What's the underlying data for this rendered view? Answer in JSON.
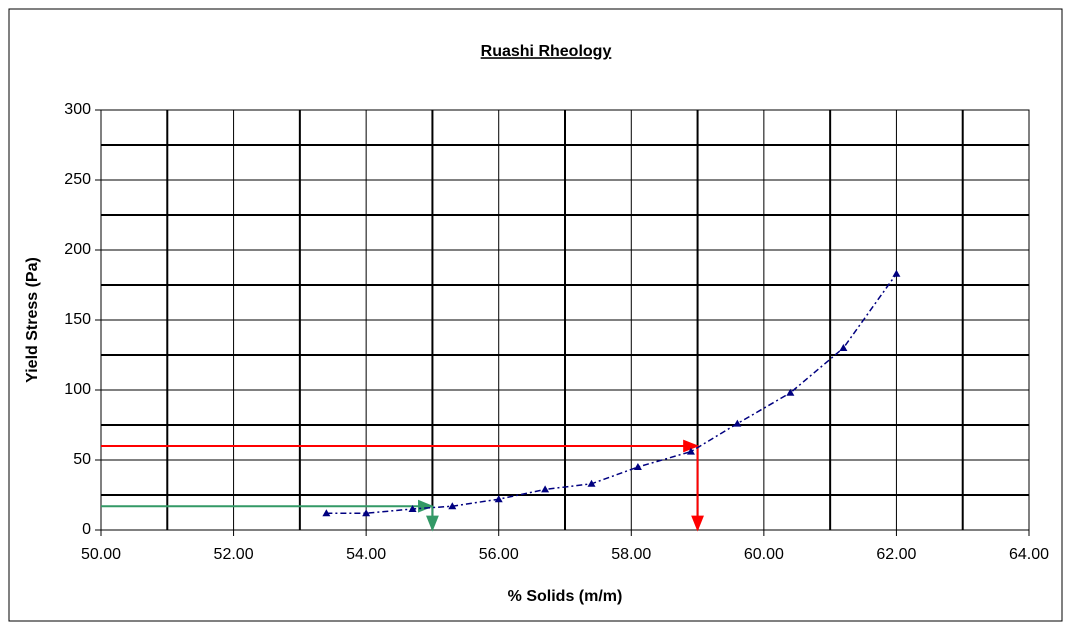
{
  "chart_data": {
    "type": "line",
    "title": "Ruashi Rheology",
    "x_label": "% Solids (m/m)",
    "y_label": "Yield Stress  (Pa)",
    "xlim": [
      50,
      64
    ],
    "ylim": [
      0,
      300
    ],
    "xticks": [
      {
        "value": 50,
        "label": "50.00"
      },
      {
        "value": 52,
        "label": "52.00"
      },
      {
        "value": 54,
        "label": "54.00"
      },
      {
        "value": 56,
        "label": "56.00"
      },
      {
        "value": 58,
        "label": "58.00"
      },
      {
        "value": 60,
        "label": "60.00"
      },
      {
        "value": 62,
        "label": "62.00"
      },
      {
        "value": 64,
        "label": "64.00"
      }
    ],
    "yticks": [
      0,
      50,
      100,
      150,
      200,
      250,
      300
    ],
    "xgrid_major": [
      51,
      53,
      55,
      57,
      59,
      61,
      63
    ],
    "ygrid_major": [
      25,
      75,
      125,
      175,
      225,
      275
    ],
    "grid": true,
    "series": [
      {
        "color": "#000080",
        "x": [
          53.4,
          54.0,
          54.7,
          55.3,
          56.0,
          56.7,
          57.4,
          58.1,
          58.9,
          59.6,
          60.4,
          61.2,
          62.0
        ],
        "values": [
          12,
          12,
          15,
          17,
          22,
          29,
          33,
          45,
          56,
          76,
          98,
          130,
          183
        ]
      }
    ],
    "annotations": [
      {
        "color": "#ff0000",
        "x": [
          50,
          59,
          59
        ],
        "y": [
          60,
          60,
          0
        ]
      },
      {
        "color": "#339966",
        "x": [
          50,
          55,
          55
        ],
        "y": [
          17,
          17,
          0
        ]
      }
    ]
  }
}
